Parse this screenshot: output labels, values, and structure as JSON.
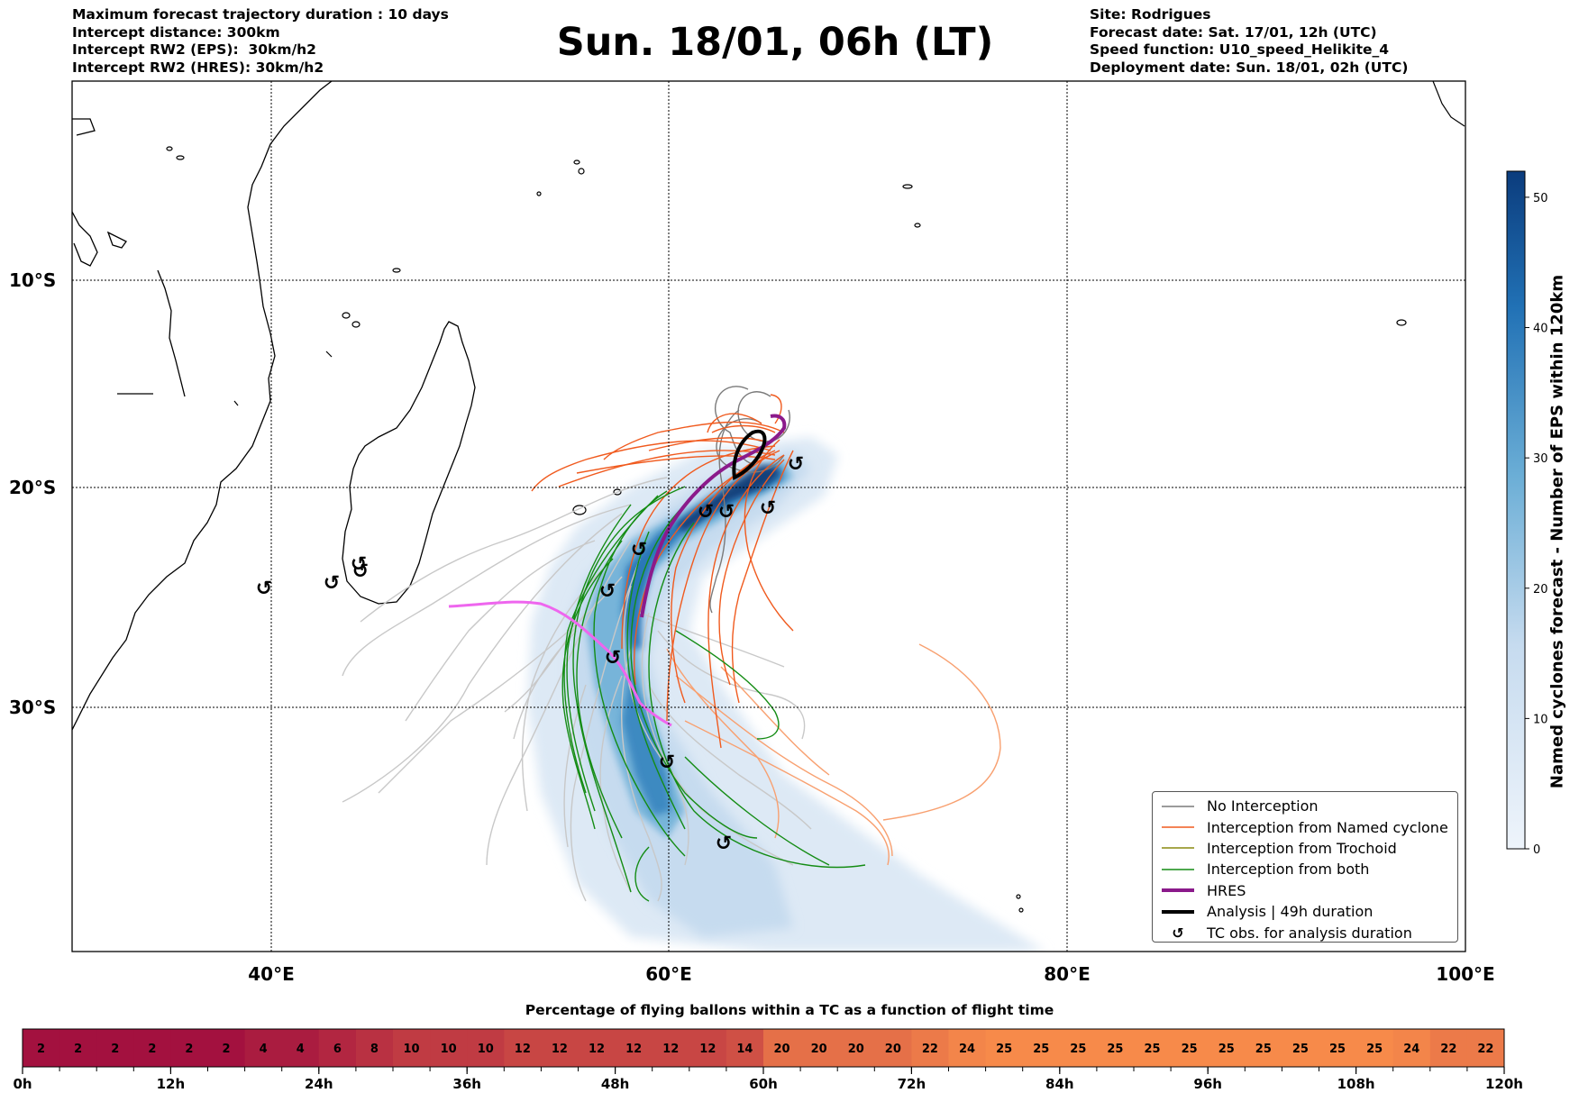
{
  "header": {
    "left_lines": [
      "Maximum forecast trajectory duration : 10 days",
      "Intercept distance: 300km",
      "Intercept RW2 (EPS):  30km/h2",
      "Intercept RW2 (HRES): 30km/h2"
    ],
    "title": "Sun. 18/01, 06h (LT)",
    "right_lines": [
      "Site: Rodrigues",
      "Forecast date: Sat. 17/01, 12h (UTC)",
      "Speed function: U10_speed_Helikite_4",
      "Deployment date: Sun. 18/01, 02h (UTC)"
    ]
  },
  "map": {
    "lon_labels": [
      "40°E",
      "60°E",
      "80°E",
      "100°E"
    ],
    "lat_labels": [
      "10°S",
      "20°S",
      "30°S"
    ],
    "colors": {
      "no_interception": "#7a7a7a",
      "named_cyclone": "#f05a1e",
      "trochoid": "#8a8a10",
      "both": "#148c14",
      "hres": "#8b1a8b",
      "analysis": "#000000",
      "secondary_track": "#ee66ee",
      "light_track": "#c8c8c8",
      "salmon_track": "#f8a070"
    }
  },
  "legend": {
    "items": [
      {
        "label": "No Interception",
        "icon": "gray-line-icon"
      },
      {
        "label": "Interception from Named cyclone",
        "icon": "orange-line-icon"
      },
      {
        "label": "Interception from Trochoid",
        "icon": "olive-line-icon"
      },
      {
        "label": "Interception from both",
        "icon": "green-line-icon"
      },
      {
        "label": "HRES",
        "icon": "purple-thick-line-icon"
      },
      {
        "label": "Analysis | 49h duration",
        "icon": "black-thick-line-icon"
      },
      {
        "label": "TC obs. for analysis duration",
        "icon": "cyclone-symbol-icon"
      }
    ]
  },
  "colorbar": {
    "label": "Named cyclones forecast - Number of EPS within 120km",
    "ticks": [
      "0",
      "10",
      "20",
      "30",
      "40",
      "50"
    ],
    "tick_values": [
      0,
      10,
      20,
      30,
      40,
      50
    ],
    "max": 52,
    "color_low": "#eef4fb",
    "color_high": "#0b3c7d"
  },
  "percentage_bar": {
    "title": "Percentage of flying ballons within a TC as a function of flight time",
    "values": [
      2,
      2,
      2,
      2,
      2,
      2,
      4,
      4,
      6,
      8,
      10,
      10,
      10,
      12,
      12,
      12,
      12,
      12,
      12,
      14,
      20,
      20,
      20,
      20,
      22,
      24,
      25,
      25,
      25,
      25,
      25,
      25,
      25,
      25,
      25,
      25,
      25,
      24,
      22,
      22
    ],
    "time_labels": [
      "0h",
      "12h",
      "24h",
      "36h",
      "48h",
      "60h",
      "72h",
      "84h",
      "96h",
      "108h",
      "120h"
    ],
    "color_min": "#a3113f",
    "color_max": "#f78a4a"
  }
}
